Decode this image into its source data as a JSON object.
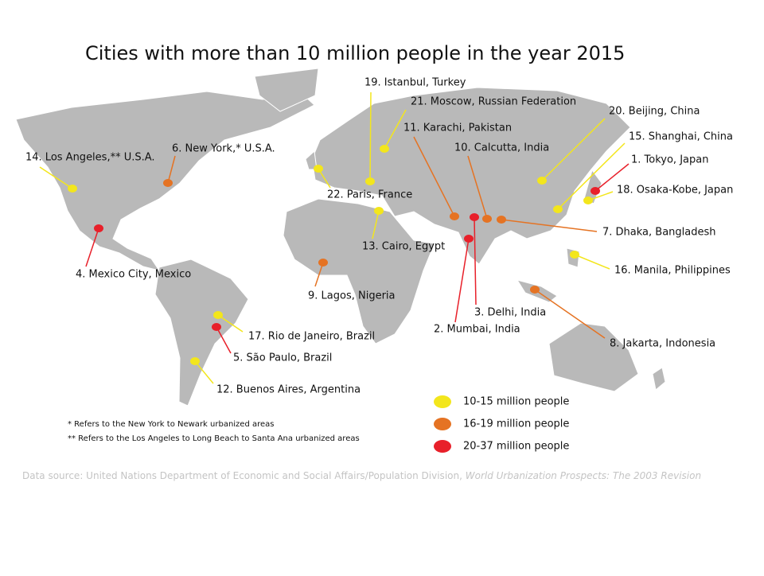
{
  "title": "Cities with more than 10 million people in the year 2015",
  "cities": [
    {
      "label": "1. Tokyo, Japan",
      "color": "#e8202a"
    },
    {
      "label": "2. Mumbai, India",
      "color": "#e8202a"
    },
    {
      "label": "3. Delhi, India",
      "color": "#e8202a"
    },
    {
      "label": "4. Mexico City, Mexico",
      "color": "#e8202a"
    },
    {
      "label": "5. São Paulo, Brazil",
      "color": "#e8202a"
    },
    {
      "label": "6. New York,* U.S.A.",
      "color": "#e57323"
    },
    {
      "label": "7. Dhaka, Bangladesh",
      "color": "#e57323"
    },
    {
      "label": "8. Jakarta, Indonesia",
      "color": "#e57323"
    },
    {
      "label": "9. Lagos, Nigeria",
      "color": "#e57323"
    },
    {
      "label": "10. Calcutta, India",
      "color": "#e57323"
    },
    {
      "label": "11. Karachi, Pakistan",
      "color": "#e57323"
    },
    {
      "label": "12. Buenos Aires, Argentina",
      "color": "#f3e61c"
    },
    {
      "label": "13. Cairo, Egypt",
      "color": "#f3e61c"
    },
    {
      "label": "14. Los Angeles,** U.S.A.",
      "color": "#f3e61c"
    },
    {
      "label": "15. Shanghai, China",
      "color": "#f3e61c"
    },
    {
      "label": "16. Manila, Philippines",
      "color": "#f3e61c"
    },
    {
      "label": "17. Rio de Janeiro, Brazil",
      "color": "#f3e61c"
    },
    {
      "label": "18. Osaka-Kobe, Japan",
      "color": "#f3e61c"
    },
    {
      "label": "19. Istanbul, Turkey",
      "color": "#f3e61c"
    },
    {
      "label": "20. Beijing, China",
      "color": "#f3e61c"
    },
    {
      "label": "21. Moscow, Russian Federation",
      "color": "#f3e61c"
    },
    {
      "label": "22. Paris, France",
      "color": "#f3e61c"
    }
  ],
  "legend": [
    {
      "label": "10-15 million people",
      "color": "#f3e61c"
    },
    {
      "label": "16-19 million people",
      "color": "#e57323"
    },
    {
      "label": "20-37 million people",
      "color": "#e8202a"
    }
  ],
  "footnotes": [
    "* Refers to the New York to Newark urbanized areas",
    "** Refers to the Los Angeles to Long Beach to Santa Ana urbanized areas"
  ],
  "source": {
    "text": "Data source: United Nations Department of Economic and Social Affairs/Population Division, ",
    "publication": "World Urbanization Prospects: The 2003 Revision"
  }
}
